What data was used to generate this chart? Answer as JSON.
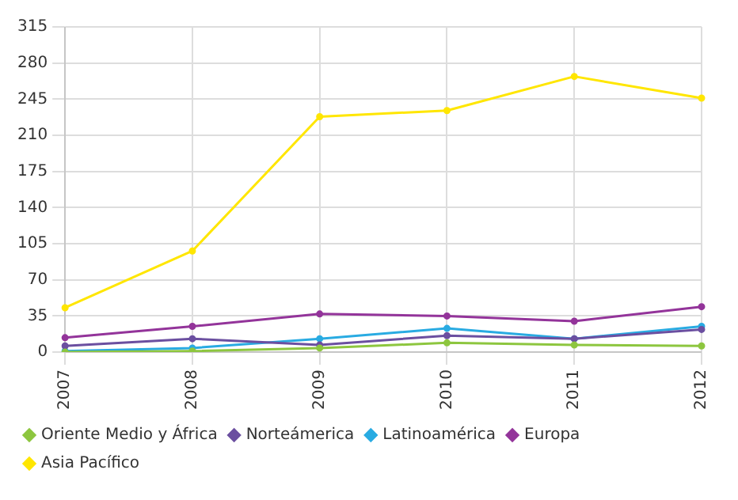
{
  "chart_data": {
    "type": "line",
    "categories": [
      "2007",
      "2008",
      "2009",
      "2010",
      "2011",
      "2012"
    ],
    "series": [
      {
        "name": "Oriente Medio y África",
        "color": "#8dc63f",
        "values": [
          0,
          1,
          4,
          9,
          7,
          6
        ]
      },
      {
        "name": "Norteámerica",
        "color": "#6b4fa0",
        "values": [
          6,
          13,
          7,
          16,
          13,
          22
        ]
      },
      {
        "name": "Latinoamérica",
        "color": "#29abe2",
        "values": [
          1,
          4,
          13,
          23,
          13,
          25
        ]
      },
      {
        "name": "Europa",
        "color": "#93349a",
        "values": [
          14,
          25,
          37,
          35,
          30,
          44
        ]
      },
      {
        "name": "Asia Pacífico",
        "color": "#ffe600",
        "values": [
          43,
          98,
          228,
          234,
          267,
          246
        ]
      }
    ],
    "ylim": [
      0,
      315
    ],
    "yticks": [
      0,
      35,
      70,
      105,
      140,
      175,
      210,
      245,
      280,
      315
    ],
    "grid": true,
    "legend": "bottom",
    "marker": "circle",
    "line_style": "solid"
  }
}
